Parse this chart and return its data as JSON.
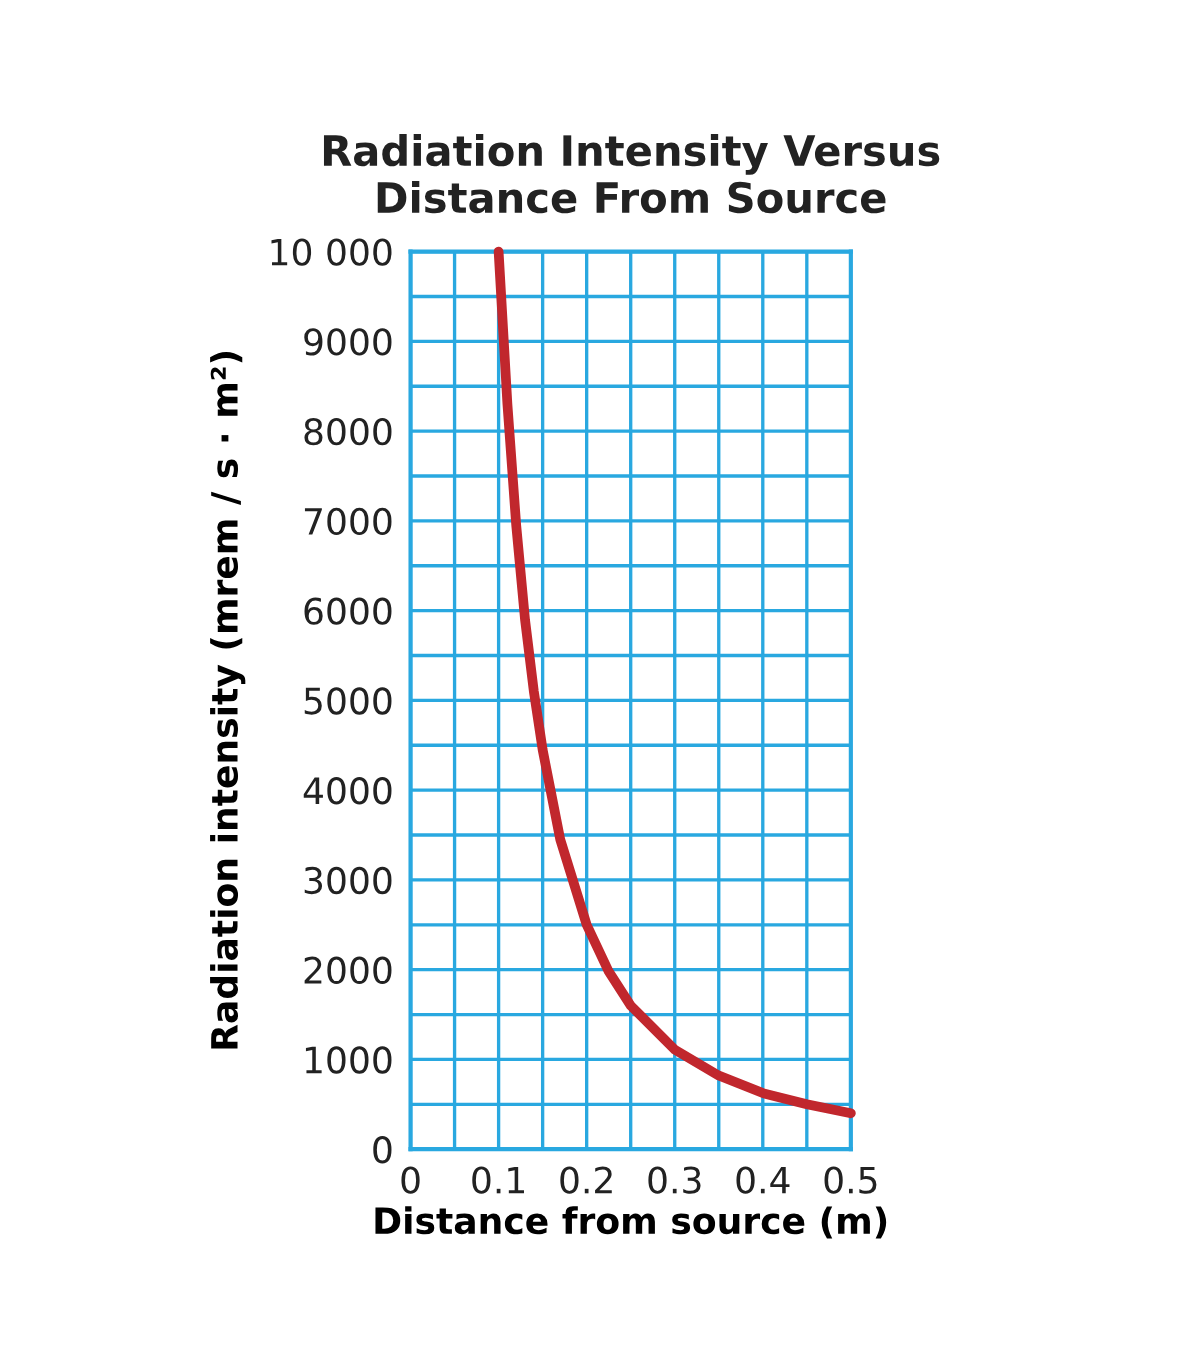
{
  "chart_data": {
    "type": "line",
    "title": "Radiation Intensity Versus\nDistance From Source",
    "xlabel": "Distance from source (m)",
    "ylabel": "Radiation intensity (mrem / s · m²)",
    "x": [
      0.1,
      0.11,
      0.12,
      0.13,
      0.14,
      0.15,
      0.17,
      0.2,
      0.225,
      0.25,
      0.3,
      0.35,
      0.4,
      0.45,
      0.5
    ],
    "series": [
      {
        "color": "#c1272d",
        "values": [
          10000,
          8300,
          6950,
          5900,
          5100,
          4450,
          3450,
          2500,
          1980,
          1600,
          1110,
          820,
          625,
          500,
          400
        ]
      }
    ],
    "xlim": [
      0,
      0.5
    ],
    "ylim": [
      0,
      10000
    ],
    "xticks": [
      0,
      {
        "value": 0.05,
        "label": null
      },
      0.1,
      {
        "value": 0.15,
        "label": null
      },
      0.2,
      {
        "value": 0.25,
        "label": null
      },
      0.3,
      {
        "value": 0.35,
        "label": null
      },
      0.4,
      {
        "value": 0.45,
        "label": null
      },
      0.5
    ],
    "yticks": [
      0,
      {
        "value": 500,
        "label": null
      },
      1000,
      {
        "value": 1500,
        "label": null
      },
      2000,
      {
        "value": 2500,
        "label": null
      },
      3000,
      {
        "value": 3500,
        "label": null
      },
      4000,
      {
        "value": 4500,
        "label": null
      },
      5000,
      {
        "value": 5500,
        "label": null
      },
      6000,
      {
        "value": 6500,
        "label": null
      },
      7000,
      {
        "value": 7500,
        "label": null
      },
      8000,
      {
        "value": 8500,
        "label": null
      },
      9000,
      {
        "value": 9500,
        "label": null
      },
      {
        "value": 10000,
        "label": "10 000"
      }
    ],
    "grid": true,
    "marker": "none",
    "line_style": "solid"
  }
}
